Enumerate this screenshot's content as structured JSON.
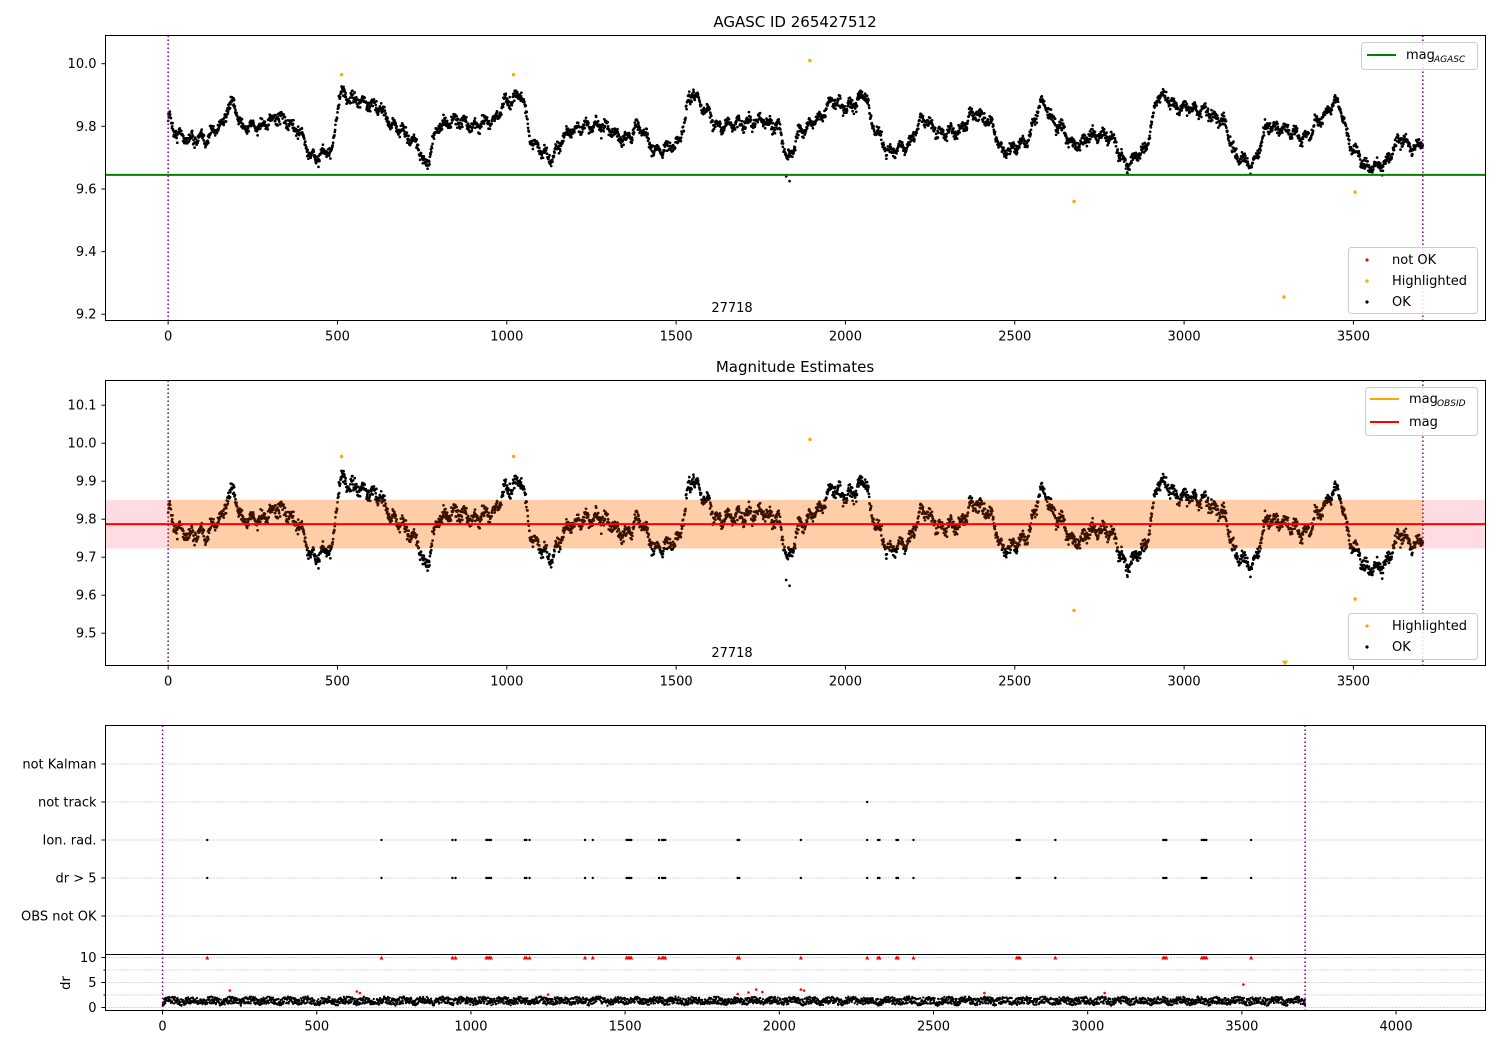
{
  "chart_data": [
    {
      "type": "scatter",
      "title": "AGASC ID 265427512",
      "x_range": [
        -185,
        3890
      ],
      "ylim": [
        9.18,
        10.09
      ],
      "x_ticks": [
        0,
        500,
        1000,
        1500,
        2000,
        2500,
        3000,
        3500,
        4000
      ],
      "y_ticks": [
        "9.2",
        "9.4",
        "9.6",
        "9.8",
        "10.0"
      ],
      "y_tick_values": [
        9.2,
        9.4,
        9.6,
        9.8,
        10.0
      ],
      "annotation": "27718",
      "vlines_x": [
        0,
        3705
      ],
      "hline": {
        "name": "mag_AGASC",
        "y": 9.645,
        "color": "#008000",
        "x_end": 3890
      },
      "legend_lines": [
        {
          "label": "mag",
          "sub": "AGASC",
          "color": "#008000"
        }
      ],
      "legend_points": [
        {
          "label": "not OK",
          "color": "#ff0000"
        },
        {
          "label": "Highlighted",
          "color": "#ffa500"
        },
        {
          "label": "OK",
          "color": "#000000"
        }
      ],
      "highlighted_points": [
        [
          512,
          9.965
        ],
        [
          1020,
          9.965
        ],
        [
          1895,
          10.01
        ],
        [
          2675,
          9.56
        ],
        [
          3295,
          9.255
        ],
        [
          3505,
          9.59
        ]
      ],
      "outlier_ok_points": [
        [
          1835,
          9.625
        ],
        [
          1825,
          9.64
        ]
      ]
    },
    {
      "type": "scatter",
      "title": "Magnitude Estimates",
      "x_range": [
        -185,
        3890
      ],
      "ylim": [
        9.415,
        10.165
      ],
      "x_ticks": [
        0,
        500,
        1000,
        1500,
        2000,
        2500,
        3000,
        3500,
        4000
      ],
      "y_ticks": [
        "9.5",
        "9.6",
        "9.7",
        "9.8",
        "9.9",
        "10.0",
        "10.1"
      ],
      "y_tick_values": [
        9.5,
        9.6,
        9.7,
        9.8,
        9.9,
        10.0,
        10.1
      ],
      "annotation": "27718",
      "vlines_x": [
        0,
        3705
      ],
      "mag_line": {
        "y": 9.787,
        "color": "#ff0000",
        "x_end": 3890
      },
      "pink_band": [
        9.723,
        9.851
      ],
      "orange_band": [
        9.723,
        9.851
      ],
      "legend_lines": [
        {
          "label": "mag",
          "sub": "OBSID",
          "color": "#ffa500"
        },
        {
          "label": "mag",
          "sub": "",
          "color": "#ff0000"
        }
      ],
      "legend_points": [
        {
          "label": "Highlighted",
          "color": "#ffa500"
        },
        {
          "label": "OK",
          "color": "#000000"
        }
      ],
      "highlighted_points": [
        [
          512,
          9.965
        ],
        [
          1020,
          9.965
        ],
        [
          1895,
          10.01
        ],
        [
          2675,
          9.56
        ],
        [
          3505,
          9.59
        ],
        [
          3298,
          9.42
        ]
      ],
      "outlier_ok_points": [
        [
          1835,
          9.625
        ],
        [
          1825,
          9.64
        ]
      ]
    },
    {
      "type": "scatter",
      "title": "",
      "x_range": [
        -185,
        4290
      ],
      "x_ticks": [
        0,
        500,
        1000,
        1500,
        2000,
        2500,
        3000,
        3500,
        4000
      ],
      "vlines_x": [
        0,
        3705
      ],
      "flag_rows": [
        "not Kalman",
        "not track",
        "Ion. rad.",
        "dr > 5",
        "OBS not OK"
      ],
      "flags": {
        "not track": [
          2285
        ],
        "Ion. rad.": [
          145,
          710,
          940,
          950,
          1050,
          1055,
          1060,
          1065,
          1175,
          1180,
          1190,
          1370,
          1395,
          1505,
          1510,
          1515,
          1520,
          1610,
          1620,
          1625,
          1630,
          1865,
          1870,
          2070,
          2285,
          2320,
          2325,
          2380,
          2385,
          2435,
          2770,
          2775,
          2780,
          2895,
          3245,
          3250,
          3255,
          3370,
          3375,
          3380,
          3385,
          3530
        ],
        "dr > 5": [
          145,
          710,
          940,
          950,
          1050,
          1055,
          1060,
          1065,
          1175,
          1180,
          1190,
          1370,
          1395,
          1505,
          1510,
          1515,
          1520,
          1610,
          1620,
          1625,
          1630,
          1865,
          1870,
          2070,
          2285,
          2320,
          2325,
          2380,
          2385,
          2435,
          2770,
          2775,
          2780,
          2895,
          3245,
          3250,
          3255,
          3370,
          3375,
          3380,
          3385,
          3530
        ]
      },
      "dr_ylabel": "dr",
      "dr_ticks": [
        "0",
        "5",
        "10"
      ],
      "dr_tick_values": [
        0,
        5,
        10
      ],
      "dr_ylim": [
        -0.6,
        10.6
      ],
      "dr_red_points": [
        [
          218,
          3.4
        ],
        [
          630,
          3.2
        ],
        [
          640,
          2.9
        ],
        [
          1925,
          3.6
        ],
        [
          1945,
          3.1
        ],
        [
          1900,
          3.0
        ],
        [
          2070,
          3.6
        ],
        [
          2080,
          3.4
        ],
        [
          2665,
          2.9
        ],
        [
          3055,
          2.9
        ],
        [
          3505,
          4.6
        ],
        [
          1865,
          2.7
        ],
        [
          1250,
          2.6
        ]
      ],
      "dr_red_top_x": [
        145,
        710,
        940,
        950,
        1050,
        1055,
        1060,
        1065,
        1175,
        1180,
        1190,
        1370,
        1395,
        1505,
        1510,
        1515,
        1520,
        1610,
        1620,
        1625,
        1630,
        1865,
        1870,
        2070,
        2285,
        2320,
        2325,
        2380,
        2385,
        2435,
        2770,
        2775,
        2780,
        2895,
        3245,
        3250,
        3255,
        3370,
        3375,
        3380,
        3385,
        3530
      ]
    }
  ],
  "x_max_data": 3705
}
